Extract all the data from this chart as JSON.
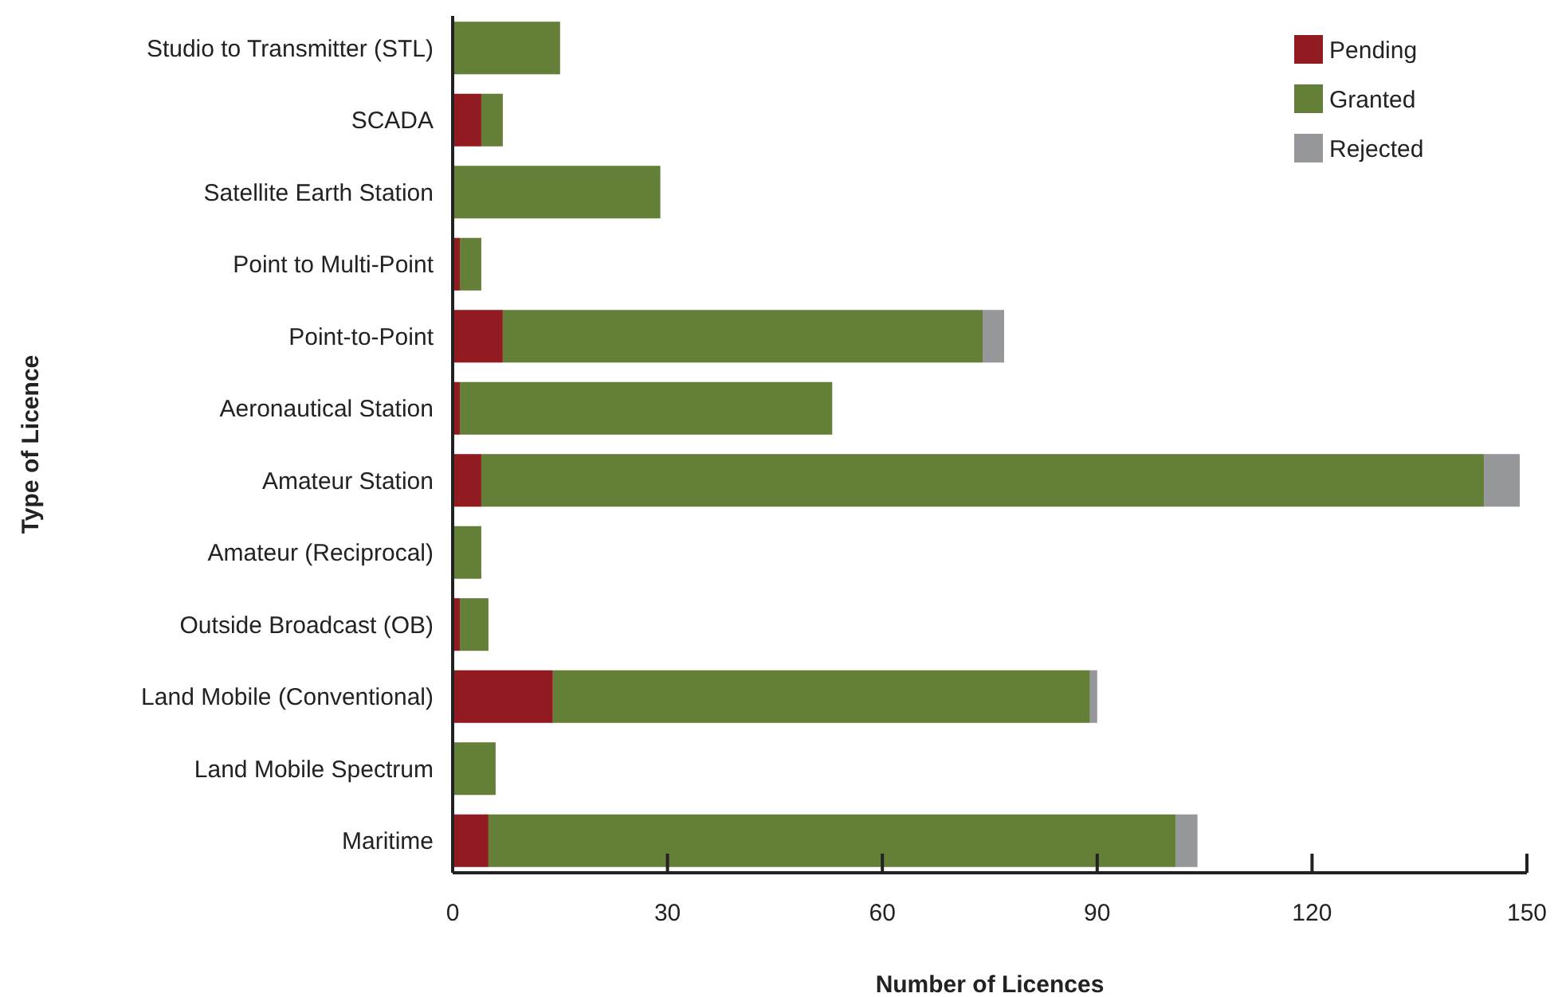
{
  "chart_data": {
    "type": "bar",
    "orientation": "horizontal",
    "stacked": true,
    "xlabel": "Number of Licences",
    "ylabel": "Type of Licence",
    "categories": [
      "Studio to Transmitter (STL)",
      "SCADA",
      "Satellite Earth Station",
      "Point to Multi-Point",
      "Point-to-Point",
      "Aeronautical Station",
      "Amateur Station",
      "Amateur (Reciprocal)",
      "Outside Broadcast (OB)",
      "Land Mobile (Conventional)",
      "Land Mobile Spectrum",
      "Maritime"
    ],
    "series": [
      {
        "name": "Pending",
        "color": "#921b22",
        "values": [
          0,
          4,
          0,
          1,
          7,
          1,
          4,
          0,
          1,
          14,
          0,
          5
        ]
      },
      {
        "name": "Granted",
        "color": "#648038",
        "values": [
          15,
          3,
          29,
          3,
          67,
          52,
          140,
          4,
          4,
          75,
          6,
          96
        ]
      },
      {
        "name": "Rejected",
        "color": "#96979b",
        "values": [
          0,
          0,
          0,
          0,
          3,
          0,
          5,
          0,
          0,
          1,
          0,
          3
        ]
      }
    ],
    "xlim": [
      0,
      150
    ],
    "xticks": [
      0,
      30,
      60,
      90,
      120,
      150
    ],
    "grid": false,
    "legend": "top right"
  }
}
